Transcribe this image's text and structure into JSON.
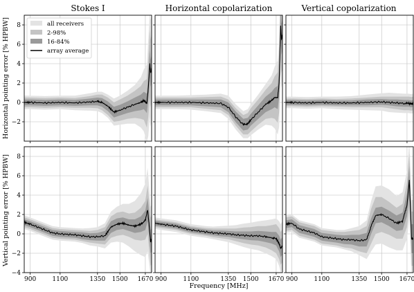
{
  "chart_data": {
    "type": "line",
    "column_titles": [
      "Stokes I",
      "Horizontal copolarization",
      "Vertical copolarization"
    ],
    "row_ylabels": [
      "Horizontal pointing error [% HPBW]",
      "Vertical pointing error [% HPBW]"
    ],
    "xlabel": "Frequency [MHz]",
    "xlim": [
      860,
      1712
    ],
    "xticks": [
      900,
      1100,
      1350,
      1500,
      1670
    ],
    "rows": [
      {
        "ylim": [
          -4,
          9
        ],
        "yticks": [
          -2,
          0,
          2,
          4,
          6,
          8
        ]
      },
      {
        "ylim": [
          -4,
          9
        ],
        "yticks": [
          -4,
          -2,
          0,
          2,
          4,
          6,
          8
        ]
      }
    ],
    "legend": {
      "placement": "top-left",
      "entries": [
        "all receivers",
        "2-98%",
        "16-84%",
        "array average"
      ]
    },
    "colors": {
      "band_all": "#e3e3e3",
      "band_2_98": "#c4c4c4",
      "band_16_84": "#9a9a9a",
      "average": "#000000",
      "grid": "#bdbdbd"
    },
    "panels": [
      {
        "row": 0,
        "col": 0,
        "average": {
          "x": [
            860,
            900,
            1000,
            1100,
            1200,
            1300,
            1350,
            1380,
            1420,
            1460,
            1500,
            1550,
            1600,
            1640,
            1660,
            1680,
            1690,
            1700,
            1705,
            1712
          ],
          "y": [
            0,
            0,
            -0.05,
            0,
            -0.05,
            0.05,
            0.1,
            0,
            -0.4,
            -1,
            -0.8,
            -0.5,
            -0.2,
            0,
            0.2,
            -0.1,
            1.5,
            4,
            3,
            3.5
          ]
        },
        "band_16_84": [
          0.3,
          0.3,
          0.3,
          0.3,
          0.3,
          0.35,
          0.4,
          0.45,
          0.5,
          0.55,
          0.55,
          0.6,
          0.7,
          0.8,
          0.9,
          1.0,
          1.2,
          1.4,
          1.4,
          1.4
        ],
        "band_2_98": [
          0.5,
          0.5,
          0.5,
          0.5,
          0.5,
          0.6,
          0.7,
          0.8,
          0.9,
          1.0,
          1.1,
          1.2,
          1.4,
          1.7,
          2.0,
          2.5,
          3.0,
          3.5,
          3.5,
          3.5
        ],
        "band_all": [
          0.7,
          0.7,
          0.7,
          0.7,
          0.75,
          0.9,
          1.0,
          1.1,
          1.2,
          1.4,
          1.5,
          1.7,
          2.0,
          2.6,
          3.2,
          4.0,
          5.0,
          5.5,
          5.5,
          5.5
        ]
      },
      {
        "row": 0,
        "col": 1,
        "average": {
          "x": [
            860,
            900,
            1000,
            1100,
            1200,
            1300,
            1350,
            1400,
            1450,
            1480,
            1500,
            1550,
            1600,
            1640,
            1660,
            1680,
            1690,
            1700,
            1705,
            1712
          ],
          "y": [
            0,
            0,
            0,
            0,
            -0.05,
            -0.1,
            -0.5,
            -1.5,
            -2.3,
            -2.2,
            -1.8,
            -1,
            -0.2,
            0.2,
            0.5,
            0.5,
            2,
            8,
            6.5,
            7
          ]
        },
        "band_16_84": [
          0.3,
          0.3,
          0.3,
          0.3,
          0.35,
          0.4,
          0.5,
          0.55,
          0.6,
          0.6,
          0.6,
          0.7,
          0.8,
          0.9,
          1.0,
          1.2,
          1.4,
          1.6,
          1.6,
          1.6
        ],
        "band_2_98": [
          0.5,
          0.5,
          0.5,
          0.5,
          0.6,
          0.7,
          0.8,
          0.9,
          1.0,
          1.1,
          1.2,
          1.3,
          1.5,
          1.8,
          2.2,
          2.6,
          3.0,
          3.5,
          3.5,
          3.5
        ],
        "band_all": [
          0.7,
          0.7,
          0.7,
          0.75,
          0.85,
          1.0,
          1.2,
          1.3,
          1.4,
          1.5,
          1.6,
          1.8,
          2.1,
          2.6,
          3.2,
          3.8,
          4.5,
          5.0,
          5.0,
          5.0
        ]
      },
      {
        "row": 0,
        "col": 2,
        "average": {
          "x": [
            860,
            900,
            1000,
            1100,
            1200,
            1300,
            1400,
            1500,
            1550,
            1600,
            1650,
            1680,
            1700,
            1712
          ],
          "y": [
            0,
            0,
            -0.05,
            0,
            -0.05,
            -0.05,
            0,
            0.05,
            0,
            -0.05,
            -0.1,
            -0.1,
            -0.15,
            -0.1
          ]
        },
        "band_16_84": [
          0.25,
          0.25,
          0.25,
          0.25,
          0.25,
          0.25,
          0.3,
          0.3,
          0.3,
          0.35,
          0.35,
          0.35,
          0.35,
          0.35
        ],
        "band_2_98": [
          0.4,
          0.4,
          0.4,
          0.4,
          0.4,
          0.45,
          0.5,
          0.55,
          0.6,
          0.65,
          0.7,
          0.7,
          0.7,
          0.7
        ],
        "band_all": [
          0.6,
          0.6,
          0.6,
          0.6,
          0.65,
          0.7,
          0.8,
          0.9,
          1.0,
          1.0,
          1.0,
          1.0,
          1.0,
          1.0
        ]
      },
      {
        "row": 1,
        "col": 0,
        "average": {
          "x": [
            860,
            900,
            950,
            1000,
            1050,
            1100,
            1150,
            1200,
            1250,
            1300,
            1350,
            1400,
            1440,
            1480,
            1520,
            1560,
            1600,
            1640,
            1670,
            1685,
            1695,
            1705,
            1712
          ],
          "y": [
            1.2,
            1.0,
            0.7,
            0.4,
            0.1,
            0,
            -0.05,
            -0.1,
            -0.2,
            -0.3,
            -0.3,
            -0.2,
            0.7,
            1.0,
            1.1,
            0.9,
            0.8,
            1.0,
            1.4,
            2.5,
            1.0,
            -0.8,
            -0.6
          ]
        },
        "band_16_84": [
          0.3,
          0.3,
          0.3,
          0.3,
          0.3,
          0.3,
          0.3,
          0.3,
          0.35,
          0.35,
          0.4,
          0.5,
          0.6,
          0.6,
          0.6,
          0.6,
          0.7,
          0.8,
          1.0,
          1.2,
          1.2,
          1.2,
          1.2
        ],
        "band_2_98": [
          0.5,
          0.5,
          0.5,
          0.5,
          0.5,
          0.5,
          0.5,
          0.5,
          0.55,
          0.6,
          0.7,
          0.9,
          1.1,
          1.2,
          1.2,
          1.2,
          1.4,
          1.7,
          2.0,
          2.5,
          2.5,
          2.5,
          2.5
        ],
        "band_all": [
          0.7,
          0.7,
          0.7,
          0.7,
          0.7,
          0.7,
          0.7,
          0.7,
          0.75,
          0.9,
          1.0,
          1.3,
          1.6,
          1.8,
          2.0,
          2.2,
          2.6,
          3.2,
          3.8,
          4.3,
          4.0,
          3.6,
          3.6
        ]
      },
      {
        "row": 1,
        "col": 1,
        "average": {
          "x": [
            860,
            900,
            950,
            1000,
            1050,
            1100,
            1150,
            1200,
            1250,
            1300,
            1350,
            1400,
            1450,
            1500,
            1550,
            1600,
            1640,
            1670,
            1690,
            1700,
            1712
          ],
          "y": [
            1.1,
            1.0,
            0.9,
            0.8,
            0.6,
            0.4,
            0.3,
            0.2,
            0.1,
            0.05,
            0,
            -0.1,
            -0.15,
            -0.2,
            -0.2,
            -0.3,
            -0.4,
            -0.5,
            -1.0,
            -1.5,
            -1.2
          ]
        },
        "band_16_84": [
          0.25,
          0.25,
          0.25,
          0.25,
          0.25,
          0.25,
          0.25,
          0.25,
          0.25,
          0.3,
          0.3,
          0.35,
          0.4,
          0.45,
          0.5,
          0.55,
          0.6,
          0.7,
          0.8,
          0.9,
          0.9
        ],
        "band_2_98": [
          0.4,
          0.4,
          0.4,
          0.4,
          0.4,
          0.4,
          0.4,
          0.4,
          0.45,
          0.5,
          0.55,
          0.65,
          0.8,
          0.9,
          1.0,
          1.1,
          1.3,
          1.5,
          1.6,
          1.7,
          1.7
        ],
        "band_all": [
          0.6,
          0.6,
          0.6,
          0.6,
          0.6,
          0.6,
          0.6,
          0.6,
          0.65,
          0.75,
          0.85,
          1.0,
          1.2,
          1.35,
          1.5,
          1.7,
          1.9,
          2.1,
          2.3,
          2.5,
          2.5
        ]
      },
      {
        "row": 1,
        "col": 2,
        "average": {
          "x": [
            860,
            900,
            950,
            1000,
            1050,
            1100,
            1150,
            1200,
            1250,
            1300,
            1350,
            1400,
            1430,
            1460,
            1500,
            1550,
            1600,
            1640,
            1670,
            1685,
            1695,
            1700,
            1712
          ],
          "y": [
            1.0,
            1.1,
            0.5,
            0.3,
            0.1,
            -0.3,
            -0.4,
            -0.5,
            -0.6,
            -0.6,
            -0.7,
            -0.6,
            0.8,
            1.9,
            2.0,
            1.6,
            1.1,
            1.3,
            3.0,
            5.5,
            2.0,
            -0.5,
            -0.5
          ]
        },
        "band_16_84": [
          0.4,
          0.4,
          0.4,
          0.4,
          0.4,
          0.4,
          0.4,
          0.4,
          0.45,
          0.5,
          0.6,
          0.7,
          0.8,
          0.8,
          0.8,
          0.8,
          0.8,
          0.9,
          1.2,
          1.5,
          1.5,
          1.5,
          1.5
        ],
        "band_2_98": [
          0.7,
          0.7,
          0.7,
          0.7,
          0.7,
          0.7,
          0.7,
          0.7,
          0.8,
          0.9,
          1.1,
          1.4,
          1.8,
          1.9,
          1.8,
          1.7,
          1.6,
          1.8,
          2.3,
          2.8,
          2.8,
          2.8,
          2.8
        ],
        "band_all": [
          0.9,
          0.9,
          0.9,
          0.9,
          0.9,
          0.9,
          0.9,
          0.9,
          1.0,
          1.2,
          1.5,
          2.0,
          2.6,
          3.0,
          3.0,
          3.0,
          2.8,
          3.0,
          3.5,
          4.0,
          4.0,
          4.0,
          4.0
        ]
      }
    ]
  }
}
